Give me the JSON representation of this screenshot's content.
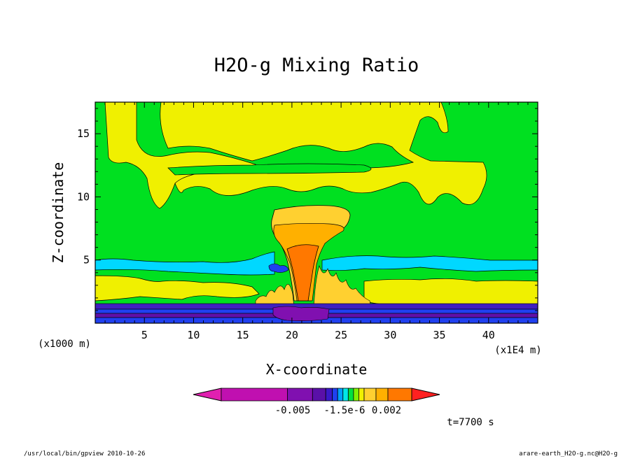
{
  "chart_data": {
    "type": "heatmap",
    "title": "H2O-g Mixing Ratio",
    "xlabel": "X-coordinate",
    "ylabel": "Z-coordinate",
    "x_unit": "(x1E4 m)",
    "y_unit": "(x1000 m)",
    "xlim": [
      0,
      45
    ],
    "ylim": [
      0,
      17.5
    ],
    "x_ticks": [
      "5",
      "10",
      "15",
      "20",
      "25",
      "30",
      "35",
      "40"
    ],
    "y_ticks": [
      "5",
      "10",
      "15"
    ],
    "colorbar_labels": [
      "-0.005",
      "-1.5e-6",
      "0.002"
    ],
    "colorbar_colors": [
      "#e020b0",
      "#c010b0",
      "#8010b0",
      "#5a10a8",
      "#3a18c8",
      "#2040f0",
      "#00a0ff",
      "#00e8e8",
      "#00e040",
      "#80f000",
      "#f0f000",
      "#ffd030",
      "#ffb000",
      "#ff7800",
      "#ff2020"
    ],
    "field_colors": {
      "band_green": "#00e020",
      "band_yellow": "#f0f000",
      "band_cyan": "#00d8ff",
      "plume_light": "#ffd030",
      "plume_orange": "#ff7800",
      "surface_blue": "#2040f0",
      "surface_purple": "#6010a8",
      "surface_violet": "#4020c0"
    }
  },
  "time_label": "t=7700 s",
  "footer": {
    "left": "/usr/local/bin/gpview  2010-10-26",
    "right": "arare-earth_H2O-g.nc@H2O-g"
  }
}
